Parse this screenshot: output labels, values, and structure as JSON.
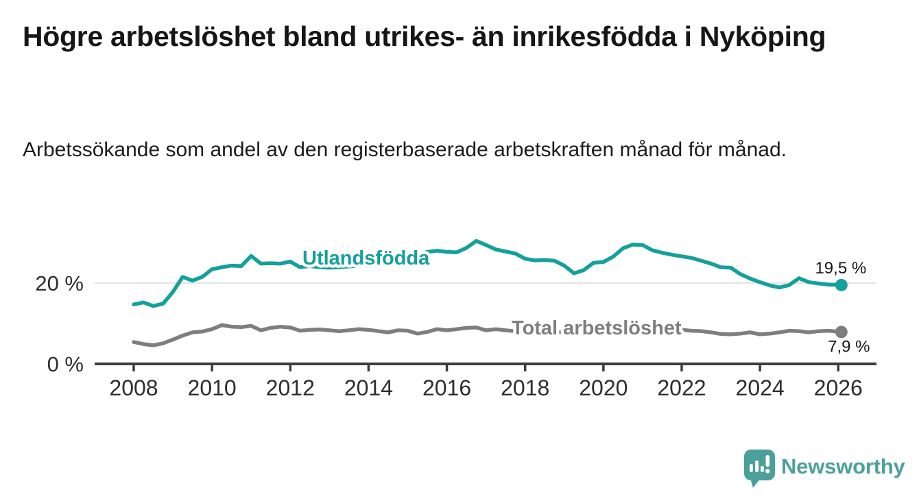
{
  "chart_data": {
    "type": "line",
    "title": "Högre arbetslöshet bland utrikes- än inrikesfödda i Nyköping",
    "subtitle": "Arbetssökande som andel av den registerbaserade arbetskraften månad för månad.",
    "unit": "%",
    "xlabel": "",
    "ylabel": "",
    "x_ticks": [
      "2008",
      "2010",
      "2012",
      "2014",
      "2016",
      "2018",
      "2020",
      "2022",
      "2024",
      "2026"
    ],
    "x_tick_years": [
      2008,
      2010,
      2012,
      2014,
      2016,
      2018,
      2020,
      2022,
      2024,
      2026
    ],
    "y_ticks": [
      {
        "value": 0,
        "label": "0 %"
      },
      {
        "value": 20,
        "label": "20 %"
      }
    ],
    "xlim": [
      2007.0,
      2026.9
    ],
    "ylim": [
      0,
      33
    ],
    "grid": "horizontal gridline at 20 % only",
    "legend_position": "inline labels on lines",
    "colors": {
      "axis": "#3d3d3d",
      "grid": "#e3e3e3",
      "tick_text": "#2d2d2d",
      "annotation_text": "#141414"
    },
    "series": [
      {
        "name": "Utlandsfödda",
        "color": "#14a09b",
        "end_label": "19,5 %",
        "end_value": 19.5,
        "points": [
          [
            2008.0,
            14.7
          ],
          [
            2008.25,
            15.2
          ],
          [
            2008.5,
            14.3
          ],
          [
            2008.75,
            14.9
          ],
          [
            2009.0,
            17.8
          ],
          [
            2009.25,
            21.5
          ],
          [
            2009.5,
            20.6
          ],
          [
            2009.75,
            21.5
          ],
          [
            2010.0,
            23.4
          ],
          [
            2010.25,
            23.9
          ],
          [
            2010.5,
            24.3
          ],
          [
            2010.75,
            24.2
          ],
          [
            2011.0,
            26.7
          ],
          [
            2011.25,
            24.8
          ],
          [
            2011.5,
            24.9
          ],
          [
            2011.75,
            24.8
          ],
          [
            2012.0,
            25.3
          ],
          [
            2012.25,
            23.9
          ],
          [
            2012.5,
            24.2
          ],
          [
            2012.75,
            23.9
          ],
          [
            2013.0,
            23.8
          ],
          [
            2013.25,
            23.9
          ],
          [
            2013.5,
            24.1
          ],
          [
            2013.75,
            24.3
          ],
          [
            2014.0,
            24.6
          ],
          [
            2014.25,
            24.9
          ],
          [
            2014.5,
            25.2
          ],
          [
            2014.75,
            25.6
          ],
          [
            2015.0,
            26.1
          ],
          [
            2015.25,
            26.8
          ],
          [
            2015.5,
            27.7
          ],
          [
            2015.75,
            28.0
          ],
          [
            2016.0,
            27.7
          ],
          [
            2016.25,
            27.6
          ],
          [
            2016.5,
            28.7
          ],
          [
            2016.75,
            30.4
          ],
          [
            2017.0,
            29.4
          ],
          [
            2017.25,
            28.3
          ],
          [
            2017.5,
            27.8
          ],
          [
            2017.75,
            27.3
          ],
          [
            2018.0,
            26.0
          ],
          [
            2018.25,
            25.6
          ],
          [
            2018.5,
            25.7
          ],
          [
            2018.75,
            25.5
          ],
          [
            2019.0,
            24.3
          ],
          [
            2019.25,
            22.4
          ],
          [
            2019.5,
            23.2
          ],
          [
            2019.75,
            25.0
          ],
          [
            2020.0,
            25.2
          ],
          [
            2020.25,
            26.5
          ],
          [
            2020.5,
            28.6
          ],
          [
            2020.75,
            29.5
          ],
          [
            2021.0,
            29.4
          ],
          [
            2021.25,
            28.1
          ],
          [
            2021.5,
            27.5
          ],
          [
            2021.75,
            27.0
          ],
          [
            2022.0,
            26.6
          ],
          [
            2022.25,
            26.2
          ],
          [
            2022.5,
            25.5
          ],
          [
            2022.75,
            24.8
          ],
          [
            2023.0,
            23.9
          ],
          [
            2023.25,
            23.8
          ],
          [
            2023.5,
            22.2
          ],
          [
            2023.75,
            21.1
          ],
          [
            2024.0,
            20.2
          ],
          [
            2024.25,
            19.4
          ],
          [
            2024.5,
            18.9
          ],
          [
            2024.75,
            19.5
          ],
          [
            2025.0,
            21.2
          ],
          [
            2025.25,
            20.2
          ],
          [
            2025.5,
            19.9
          ],
          [
            2025.75,
            19.6
          ],
          [
            2026.08,
            19.5
          ]
        ]
      },
      {
        "name": "Total arbetslöshet",
        "color": "#7e7e7e",
        "end_label": "7,9 %",
        "end_value": 7.9,
        "points": [
          [
            2008.0,
            5.4
          ],
          [
            2008.25,
            4.9
          ],
          [
            2008.5,
            4.6
          ],
          [
            2008.75,
            5.1
          ],
          [
            2009.0,
            6.0
          ],
          [
            2009.25,
            7.0
          ],
          [
            2009.5,
            7.8
          ],
          [
            2009.75,
            8.0
          ],
          [
            2010.0,
            8.6
          ],
          [
            2010.25,
            9.6
          ],
          [
            2010.5,
            9.2
          ],
          [
            2010.75,
            9.1
          ],
          [
            2011.0,
            9.4
          ],
          [
            2011.25,
            8.3
          ],
          [
            2011.5,
            8.9
          ],
          [
            2011.75,
            9.2
          ],
          [
            2012.0,
            9.0
          ],
          [
            2012.25,
            8.2
          ],
          [
            2012.5,
            8.4
          ],
          [
            2012.75,
            8.5
          ],
          [
            2013.0,
            8.3
          ],
          [
            2013.25,
            8.1
          ],
          [
            2013.5,
            8.3
          ],
          [
            2013.75,
            8.6
          ],
          [
            2014.0,
            8.4
          ],
          [
            2014.25,
            8.1
          ],
          [
            2014.5,
            7.8
          ],
          [
            2014.75,
            8.3
          ],
          [
            2015.0,
            8.2
          ],
          [
            2015.25,
            7.5
          ],
          [
            2015.5,
            7.9
          ],
          [
            2015.75,
            8.6
          ],
          [
            2016.0,
            8.3
          ],
          [
            2016.25,
            8.6
          ],
          [
            2016.5,
            8.9
          ],
          [
            2016.75,
            9.0
          ],
          [
            2017.0,
            8.3
          ],
          [
            2017.25,
            8.6
          ],
          [
            2017.5,
            8.3
          ],
          [
            2017.75,
            8.1
          ],
          [
            2018.0,
            8.2
          ],
          [
            2018.25,
            8.0
          ],
          [
            2018.5,
            7.9
          ],
          [
            2018.75,
            7.8
          ],
          [
            2019.0,
            7.9
          ],
          [
            2019.25,
            8.0
          ],
          [
            2019.5,
            8.1
          ],
          [
            2019.75,
            8.3
          ],
          [
            2020.0,
            8.6
          ],
          [
            2020.25,
            9.2
          ],
          [
            2020.5,
            9.6
          ],
          [
            2020.75,
            9.5
          ],
          [
            2021.0,
            9.3
          ],
          [
            2021.25,
            9.0
          ],
          [
            2021.5,
            8.8
          ],
          [
            2021.75,
            8.6
          ],
          [
            2022.0,
            8.4
          ],
          [
            2022.25,
            8.2
          ],
          [
            2022.5,
            8.1
          ],
          [
            2022.75,
            7.8
          ],
          [
            2023.0,
            7.4
          ],
          [
            2023.25,
            7.3
          ],
          [
            2023.5,
            7.5
          ],
          [
            2023.75,
            7.8
          ],
          [
            2024.0,
            7.3
          ],
          [
            2024.25,
            7.5
          ],
          [
            2024.5,
            7.8
          ],
          [
            2024.75,
            8.2
          ],
          [
            2025.0,
            8.1
          ],
          [
            2025.25,
            7.8
          ],
          [
            2025.5,
            8.1
          ],
          [
            2025.75,
            8.2
          ],
          [
            2026.08,
            7.9
          ]
        ]
      }
    ]
  },
  "logo": {
    "text": "Newsworthy",
    "color": "#4ba19a",
    "icon": "newsworthy-bubble-chart-icon"
  }
}
